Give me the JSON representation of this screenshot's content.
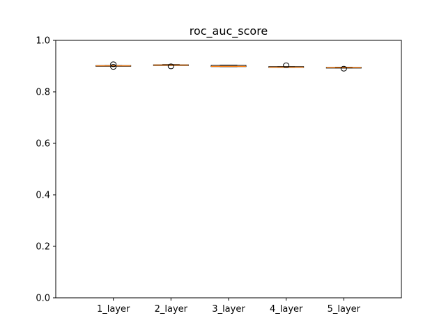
{
  "chart_data": {
    "type": "boxplot",
    "title": "roc_auc_score",
    "xlabel": "",
    "ylabel": "",
    "ylim": [
      0.0,
      1.0
    ],
    "yticks": [
      0.0,
      0.2,
      0.4,
      0.6,
      0.8,
      1.0
    ],
    "ytick_labels": [
      "0.0",
      "0.2",
      "0.4",
      "0.6",
      "0.8",
      "1.0"
    ],
    "grid": false,
    "categories": [
      "1_layer",
      "2_layer",
      "3_layer",
      "4_layer",
      "5_layer"
    ],
    "boxes": [
      {
        "whisker_low": 0.9,
        "q1": 0.9,
        "median": 0.901,
        "q3": 0.902,
        "whisker_high": 0.902,
        "outliers": [
          0.907,
          0.897
        ]
      },
      {
        "whisker_low": 0.903,
        "q1": 0.903,
        "median": 0.904,
        "q3": 0.905,
        "whisker_high": 0.906,
        "outliers": [
          0.899
        ]
      },
      {
        "whisker_low": 0.898,
        "q1": 0.898,
        "median": 0.899,
        "q3": 0.903,
        "whisker_high": 0.904,
        "outliers": []
      },
      {
        "whisker_low": 0.895,
        "q1": 0.895,
        "median": 0.896,
        "q3": 0.898,
        "whisker_high": 0.898,
        "outliers": [
          0.903
        ]
      },
      {
        "whisker_low": 0.893,
        "q1": 0.893,
        "median": 0.894,
        "q3": 0.895,
        "whisker_high": 0.896,
        "outliers": [
          0.89
        ]
      }
    ],
    "colors": {
      "box": "#000000",
      "median": "#ff7f0e",
      "outlier": "#000000",
      "axes": "#000000"
    }
  }
}
